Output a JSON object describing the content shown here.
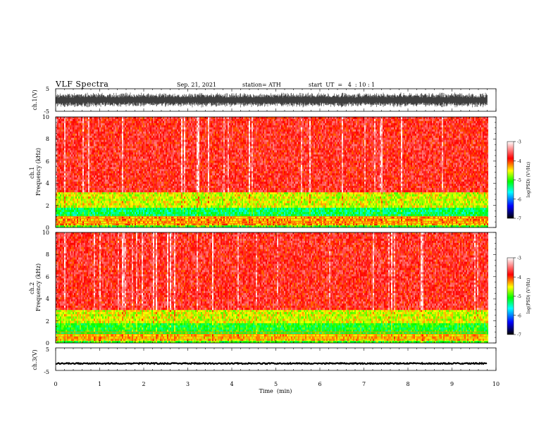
{
  "header": {
    "title": "VLF Spectra",
    "date": "Sep. 21, 2021",
    "station": "station= ATH",
    "start_ut": "start  UT  =   4  : 10 : 1"
  },
  "chart_data": [
    {
      "type": "line",
      "panel": "ch1-waveform",
      "ylabel": "ch.1(V)",
      "yticks": [
        "5",
        "-5"
      ],
      "ylim": [
        -5,
        5
      ],
      "xlim": [
        0,
        10
      ],
      "x_extent_min": [
        0,
        9.8
      ],
      "color": "#000000",
      "description_values": "noise waveform, peak-to-peak approx -3 to 3 V"
    },
    {
      "type": "heatmap",
      "panel": "ch1-spectrogram",
      "ylabel": "ch.1\nFrequency  (kHz)",
      "yticks": [
        "0",
        "2",
        "4",
        "6",
        "8",
        "10"
      ],
      "ylim": [
        0,
        10
      ],
      "xlim": [
        0,
        10
      ],
      "x_extent_min": [
        0,
        9.8
      ],
      "colorbar": {
        "label": "log(PSD) (V²/Hz)",
        "ticks": [
          "-3",
          "-4",
          "-5",
          "-6",
          "-7"
        ],
        "range": [
          -7,
          -3
        ]
      },
      "bands_khz": [
        {
          "from": 0.0,
          "to": 0.2,
          "value": -5.0
        },
        {
          "from": 0.2,
          "to": 1.0,
          "value": -4.3
        },
        {
          "from": 1.0,
          "to": 1.8,
          "value": -5.3
        },
        {
          "from": 1.8,
          "to": 3.2,
          "value": -4.6
        },
        {
          "from": 3.2,
          "to": 10.0,
          "value": -3.8
        }
      ]
    },
    {
      "type": "heatmap",
      "panel": "ch2-spectrogram",
      "ylabel": "ch.2\nFrequency  (kHz)",
      "yticks": [
        "0",
        "2",
        "4",
        "6",
        "8",
        "10"
      ],
      "ylim": [
        0,
        10
      ],
      "xlim": [
        0,
        10
      ],
      "x_extent_min": [
        0,
        9.8
      ],
      "colorbar": {
        "label": "log(PSD) (V²/Hz)",
        "ticks": [
          "-3",
          "-4",
          "-5",
          "-6",
          "-7"
        ],
        "range": [
          -7,
          -3
        ]
      },
      "bands_khz": [
        {
          "from": 0.0,
          "to": 0.2,
          "value": -5.0
        },
        {
          "from": 0.2,
          "to": 0.8,
          "value": -4.4
        },
        {
          "from": 0.8,
          "to": 1.8,
          "value": -5.1
        },
        {
          "from": 1.8,
          "to": 3.0,
          "value": -4.6
        },
        {
          "from": 3.0,
          "to": 10.0,
          "value": -3.8
        }
      ]
    },
    {
      "type": "line",
      "panel": "ch3-waveform",
      "ylabel": "ch.3(V)",
      "yticks": [
        "5",
        "-5"
      ],
      "ylim": [
        -5,
        5
      ],
      "xlim": [
        0,
        10
      ],
      "x_extent_min": [
        0,
        9.8
      ],
      "xticks": [
        "0",
        "1",
        "2",
        "3",
        "4",
        "5",
        "6",
        "7",
        "8",
        "9",
        "10"
      ],
      "xlabel": "Time  (min)",
      "color": "#000000",
      "description_values": "flat signal near -2 V"
    }
  ],
  "colors": {
    "colormap": [
      "#000000",
      "#0000ff",
      "#00ffff",
      "#00ff00",
      "#ffff00",
      "#ff0000",
      "#ffffff"
    ],
    "spectrogram_background": "#f52a1c"
  }
}
